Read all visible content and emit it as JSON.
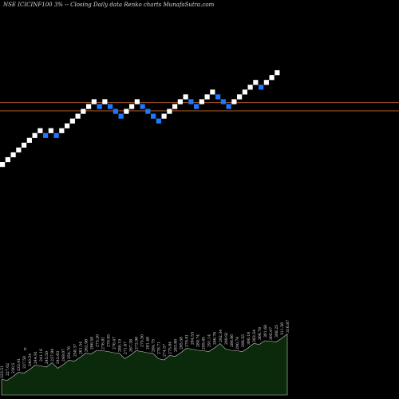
{
  "title": "NSE ICICINF100  3% -- Closing Daily data  Renko  charts MunafaSutra.com",
  "chart_data": {
    "type": "renko",
    "title": "NSE ICICINF100  3% -- Closing Daily data  Renko  charts MunafaSutra.com",
    "brick_size_percent": 3,
    "colors": {
      "up": "#ffffff",
      "down": "#1e78ff",
      "reference_line": "#c8642a",
      "area_fill": "#0b2a0b",
      "area_stroke": "#c8c8c8",
      "background": "#000000"
    },
    "bricks": [
      {
        "d": "up",
        "level": 0
      },
      {
        "d": "up",
        "level": 1
      },
      {
        "d": "up",
        "level": 2
      },
      {
        "d": "up",
        "level": 3
      },
      {
        "d": "up",
        "level": 4
      },
      {
        "d": "up",
        "level": 5
      },
      {
        "d": "up",
        "level": 6
      },
      {
        "d": "up",
        "level": 7
      },
      {
        "d": "down",
        "level": 6
      },
      {
        "d": "up",
        "level": 7
      },
      {
        "d": "down",
        "level": 6
      },
      {
        "d": "up",
        "level": 7
      },
      {
        "d": "up",
        "level": 8
      },
      {
        "d": "up",
        "level": 9
      },
      {
        "d": "up",
        "level": 10
      },
      {
        "d": "up",
        "level": 11
      },
      {
        "d": "up",
        "level": 12
      },
      {
        "d": "up",
        "level": 13
      },
      {
        "d": "down",
        "level": 12
      },
      {
        "d": "up",
        "level": 13
      },
      {
        "d": "down",
        "level": 12
      },
      {
        "d": "down",
        "level": 11
      },
      {
        "d": "down",
        "level": 10
      },
      {
        "d": "up",
        "level": 11
      },
      {
        "d": "up",
        "level": 12
      },
      {
        "d": "up",
        "level": 13
      },
      {
        "d": "down",
        "level": 12
      },
      {
        "d": "down",
        "level": 11
      },
      {
        "d": "down",
        "level": 10
      },
      {
        "d": "down",
        "level": 9
      },
      {
        "d": "up",
        "level": 10
      },
      {
        "d": "up",
        "level": 11
      },
      {
        "d": "up",
        "level": 12
      },
      {
        "d": "up",
        "level": 13
      },
      {
        "d": "up",
        "level": 14
      },
      {
        "d": "down",
        "level": 13
      },
      {
        "d": "down",
        "level": 12
      },
      {
        "d": "up",
        "level": 13
      },
      {
        "d": "up",
        "level": 14
      },
      {
        "d": "up",
        "level": 15
      },
      {
        "d": "down",
        "level": 14
      },
      {
        "d": "down",
        "level": 13
      },
      {
        "d": "down",
        "level": 12
      },
      {
        "d": "up",
        "level": 13
      },
      {
        "d": "up",
        "level": 14
      },
      {
        "d": "up",
        "level": 15
      },
      {
        "d": "up",
        "level": 16
      },
      {
        "d": "up",
        "level": 17
      },
      {
        "d": "down",
        "level": 16
      },
      {
        "d": "up",
        "level": 17
      },
      {
        "d": "up",
        "level": 18
      },
      {
        "d": "up",
        "level": 19
      }
    ],
    "reference_lines": [
      {
        "level": 12.8
      },
      {
        "level": 11.1
      }
    ],
    "bottom_values": [
      "223.51",
      "227.02",
      "230.5",
      "233.91",
      "237.50",
      "240.54",
      "244.91",
      "241.16",
      "245.50",
      "237.84",
      "242.63",
      "249.07",
      "254.76",
      "258.37",
      "261.54",
      "262.98",
      "266.58",
      "273.20",
      "276.81",
      "270.95",
      "276.47",
      "280.19",
      "271.67",
      "267.38",
      "272.96",
      "275.50",
      "281.46",
      "284.75",
      "278.71",
      "274.57",
      "275.84",
      "283.88",
      "285.50",
      "279.91",
      "284.53",
      "289.74",
      "295.85",
      "291.14",
      "286.76",
      "292.34",
      "299.91",
      "286.66",
      "290.74",
      "296.55",
      "300.18",
      "283.54",
      "306.78",
      "301.68",
      "305.07",
      "308.25",
      "311.56",
      "316.87"
    ],
    "bottom_extra_label": "6"
  }
}
